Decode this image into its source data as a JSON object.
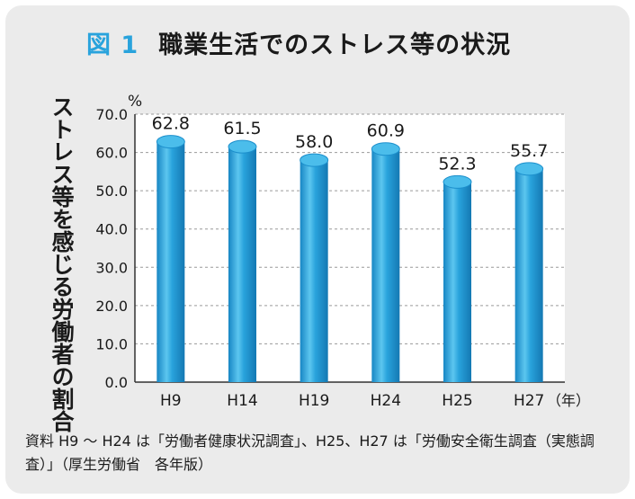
{
  "title": {
    "figure_number": "図 1",
    "text": "職業生活でのストレス等の状況"
  },
  "colors": {
    "background": "#ebebeb",
    "bar": "#29a3dc",
    "accent": "#29a3dc"
  },
  "source_note": "資料 H9 ～ H24 は「労働者健康状況調査」、H25、H27 は「労働安全衛生調査（実態調査）」（厚生労働省　各年版）",
  "chart_data": {
    "type": "bar",
    "title": "職業生活でのストレス等の状況",
    "ylabel": "ストレス等を感じる労働者の割合",
    "yunit": "%",
    "xunit": "（年）",
    "categories": [
      "H9",
      "H14",
      "H19",
      "H24",
      "H25",
      "H27"
    ],
    "values": [
      62.8,
      61.5,
      58.0,
      60.9,
      52.3,
      55.7
    ],
    "value_labels": [
      "62.8",
      "61.5",
      "58.0",
      "60.9",
      "52.3",
      "55.7"
    ],
    "ylim": [
      0,
      70
    ],
    "yticks": [
      "0.0",
      "10.0",
      "20.0",
      "30.0",
      "40.0",
      "50.0",
      "60.0",
      "70.0"
    ],
    "grid": true
  }
}
